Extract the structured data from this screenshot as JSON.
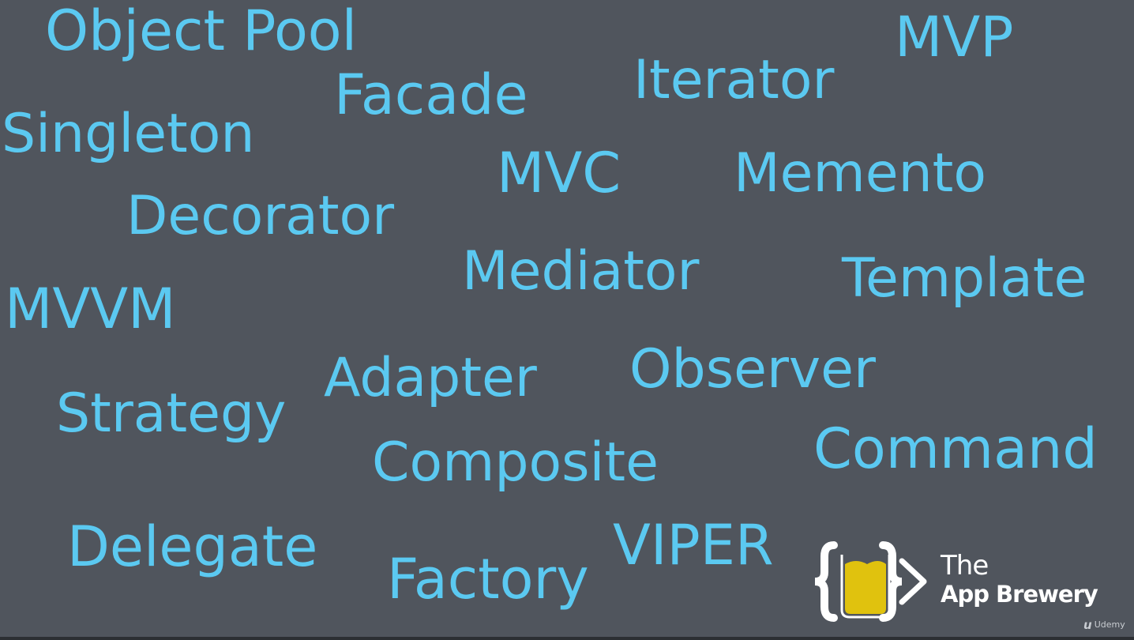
{
  "words": {
    "object_pool": "Object Pool",
    "mvp": "MVP",
    "iterator": "Iterator",
    "facade": "Facade",
    "singleton": "Singleton",
    "mvc": "MVC",
    "memento": "Memento",
    "decorator": "Decorator",
    "mediator": "Mediator",
    "template": "Template",
    "mvvm": "MVVM",
    "observer": "Observer",
    "adapter": "Adapter",
    "strategy": "Strategy",
    "command": "Command",
    "composite": "Composite",
    "delegate": "Delegate",
    "viper": "VIPER",
    "factory": "Factory"
  },
  "brand": {
    "logo_icon": "curly-braces-beer-glass-arrow-icon",
    "line1": "The",
    "line2": "App Brewery"
  },
  "watermark": {
    "icon": "udemy-icon",
    "label": "Udemy"
  },
  "colors": {
    "background": "#50555d",
    "word_text": "#5bc9f1",
    "brand_text": "#ffffff",
    "logo_fill": "#e0c20e"
  }
}
